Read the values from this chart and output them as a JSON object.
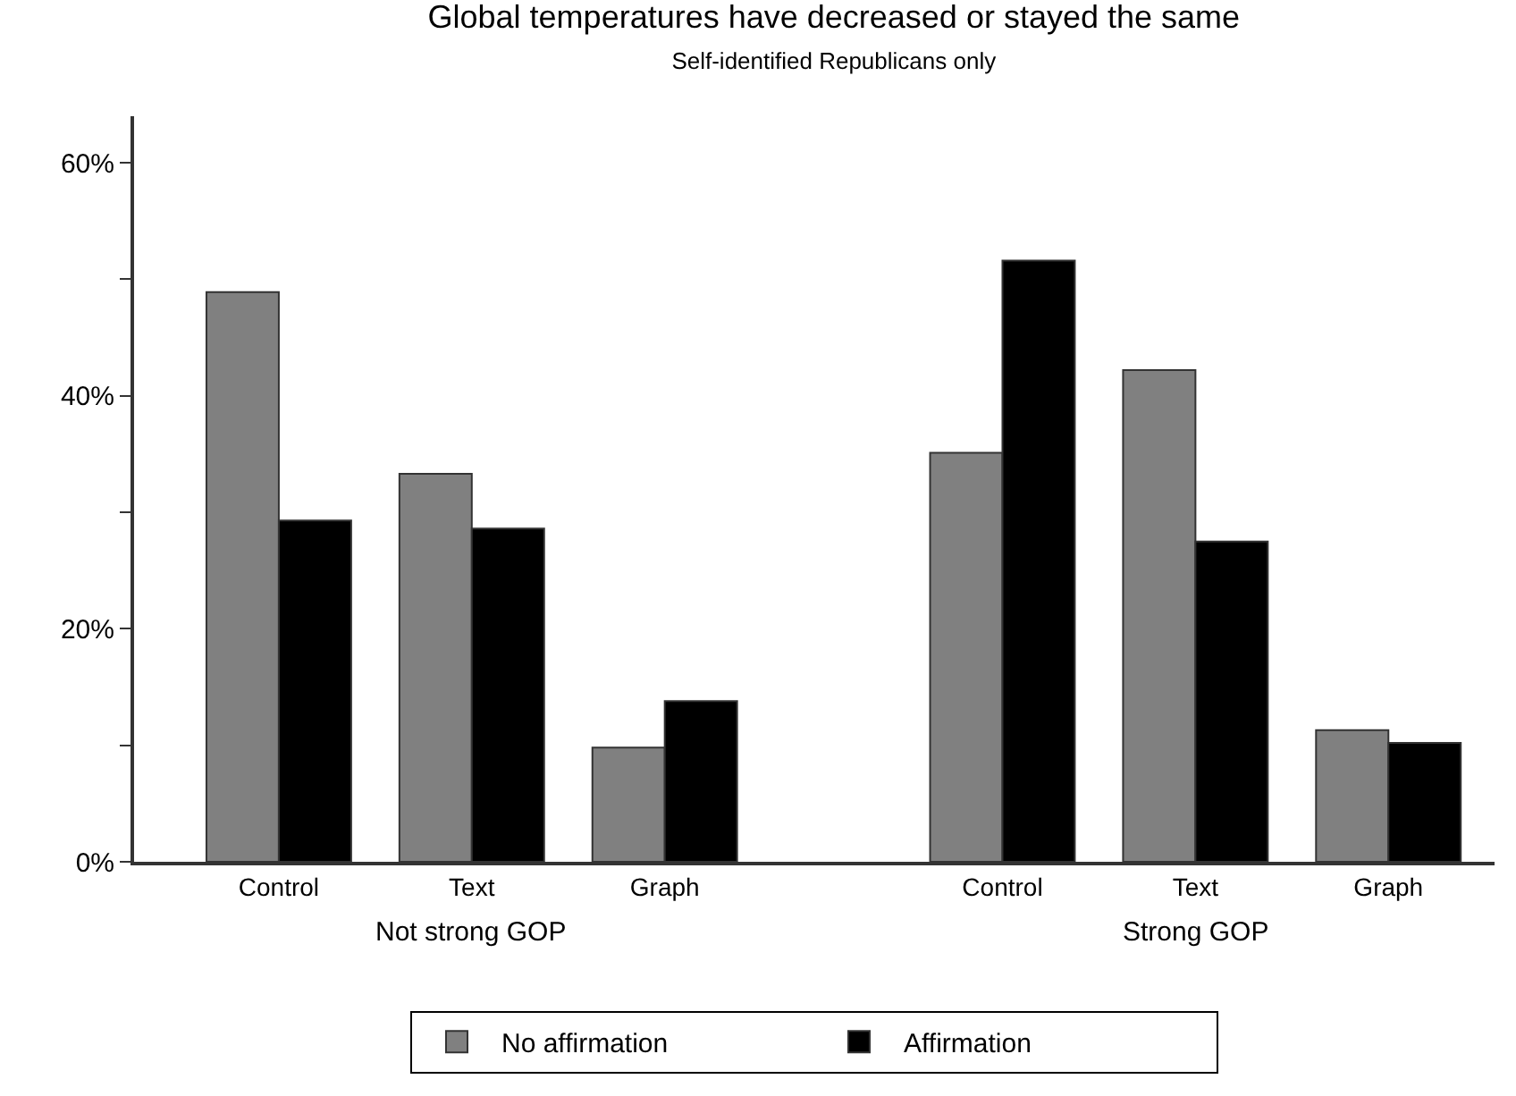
{
  "chart_data": {
    "type": "bar",
    "title": "Global temperatures have decreased or stayed the same",
    "subtitle": "Self-identified Republicans only",
    "categories": [
      "Control",
      "Text",
      "Graph",
      "Control",
      "Text",
      "Graph"
    ],
    "series": [
      {
        "name": "No affirmation",
        "color": "#808080",
        "values": [
          48.9,
          33.3,
          9.8,
          35.1,
          42.2,
          11.3
        ]
      },
      {
        "name": "Affirmation",
        "color": "#000000",
        "values": [
          29.3,
          28.6,
          13.8,
          51.6,
          27.5,
          10.2
        ]
      }
    ],
    "annotations": [
      "Not strong GOP",
      "Strong GOP"
    ],
    "ylim": [
      0,
      64
    ],
    "yticks": [
      {
        "value": 0,
        "label": "0%"
      },
      {
        "value": 10,
        "label": null
      },
      {
        "value": 20,
        "label": "20%"
      },
      {
        "value": 30,
        "label": null
      },
      {
        "value": 40,
        "label": "40%"
      },
      {
        "value": 50,
        "label": null
      },
      {
        "value": 60,
        "label": "60%"
      }
    ],
    "legend": "bottom"
  }
}
